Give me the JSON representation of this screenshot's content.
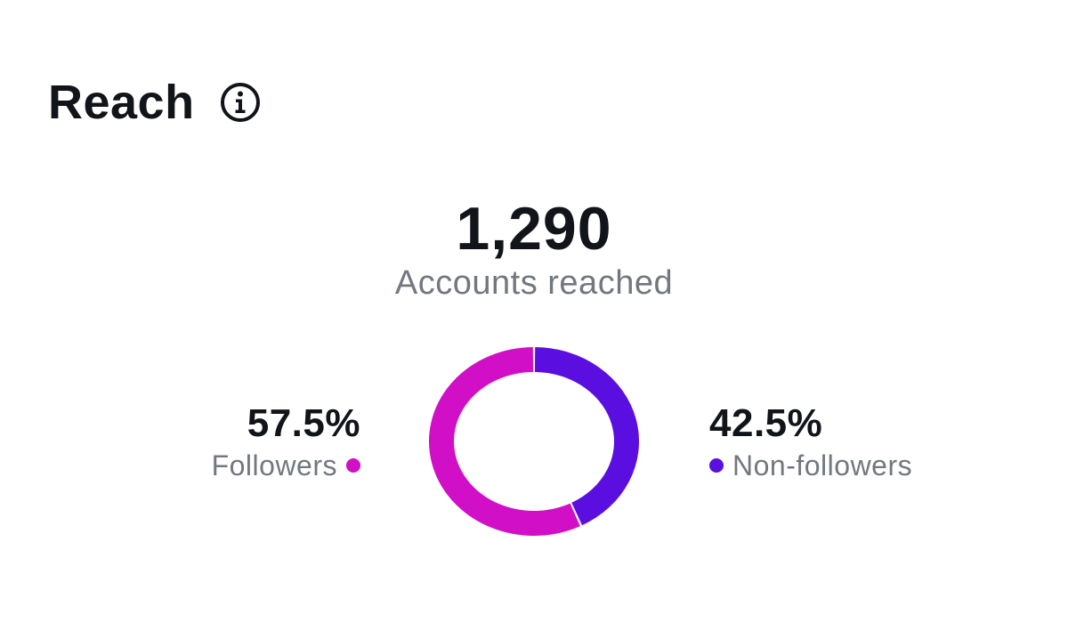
{
  "header": {
    "title": "Reach",
    "info_icon": "info-icon"
  },
  "summary": {
    "total": "1,290",
    "total_label": "Accounts reached"
  },
  "legend": {
    "followers": {
      "percent": "57.5%",
      "label": "Followers",
      "color": "#d00fc7"
    },
    "non_followers": {
      "percent": "42.5%",
      "label": "Non-followers",
      "color": "#5a0fe0"
    }
  },
  "chart_data": {
    "type": "pie",
    "categories": [
      "Followers",
      "Non-followers"
    ],
    "values": [
      57.5,
      42.5
    ],
    "colors": [
      "#d00fc7",
      "#5a0fe0"
    ],
    "style": "donut"
  }
}
